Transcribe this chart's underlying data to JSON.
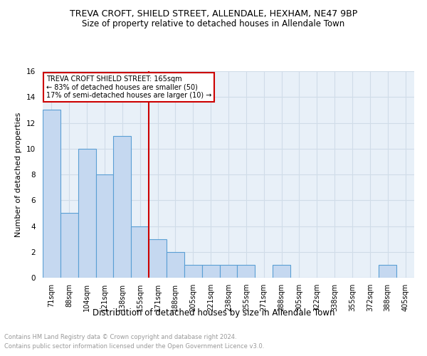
{
  "title1": "TREVA CROFT, SHIELD STREET, ALLENDALE, HEXHAM, NE47 9BP",
  "title2": "Size of property relative to detached houses in Allendale Town",
  "xlabel": "Distribution of detached houses by size in Allendale Town",
  "ylabel": "Number of detached properties",
  "categories": [
    "71sqm",
    "88sqm",
    "104sqm",
    "121sqm",
    "138sqm",
    "155sqm",
    "171sqm",
    "188sqm",
    "205sqm",
    "221sqm",
    "238sqm",
    "255sqm",
    "271sqm",
    "288sqm",
    "305sqm",
    "322sqm",
    "338sqm",
    "355sqm",
    "372sqm",
    "388sqm",
    "405sqm"
  ],
  "values": [
    13,
    5,
    10,
    8,
    11,
    4,
    3,
    2,
    1,
    1,
    1,
    1,
    0,
    1,
    0,
    0,
    0,
    0,
    0,
    1,
    0
  ],
  "bar_color": "#c5d8f0",
  "bar_edge_color": "#5a9fd4",
  "vline_color": "#cc0000",
  "ylim": [
    0,
    16
  ],
  "yticks": [
    0,
    2,
    4,
    6,
    8,
    10,
    12,
    14,
    16
  ],
  "annotation_title": "TREVA CROFT SHIELD STREET: 165sqm",
  "annotation_line1": "← 83% of detached houses are smaller (50)",
  "annotation_line2": "17% of semi-detached houses are larger (10) →",
  "annotation_box_color": "#ffffff",
  "annotation_box_edge": "#cc0000",
  "footer1": "Contains HM Land Registry data © Crown copyright and database right 2024.",
  "footer2": "Contains public sector information licensed under the Open Government Licence v3.0.",
  "bg_color": "#ffffff",
  "grid_color": "#d0dce8",
  "ax_bg_color": "#e8f0f8"
}
